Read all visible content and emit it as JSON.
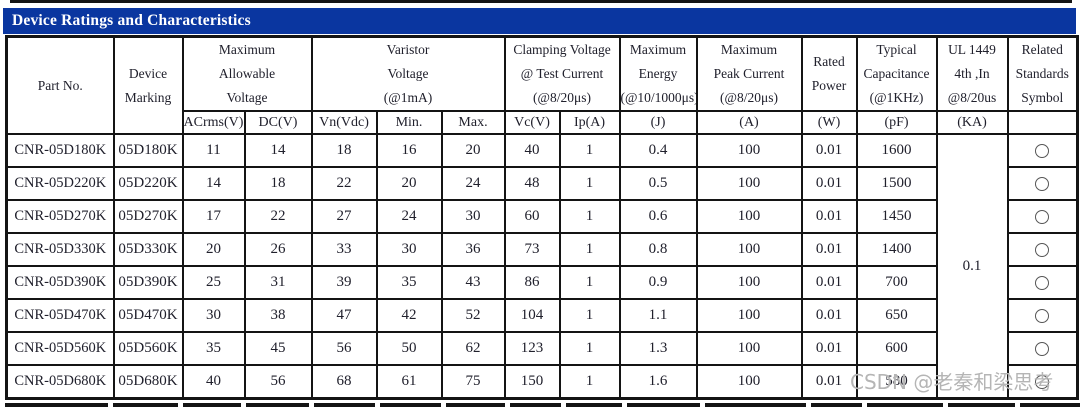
{
  "colors": {
    "title_bg": "#0a36a0",
    "border": "#141414",
    "watermark": "#b5b5b5"
  },
  "title_bar": {
    "title": "Device Ratings and Characteristics"
  },
  "watermark": {
    "text": "CSDN @老秦和梁思考"
  },
  "table": {
    "group_headers": {
      "part_no": "Part No.",
      "device_marking": "Device\nMarking",
      "max_allowable_voltage": "Maximum\nAllowable\nVoltage",
      "varistor_voltage": "Varistor\nVoltage\n(@1mA)",
      "clamping_voltage": "Clamping Voltage\n@ Test Current\n(@8/20μs)",
      "maximum_energy": "Maximum\nEnergy\n(@10/1000μs)",
      "maximum_peak_current": "Maximum\nPeak Current\n(@8/20μs)",
      "rated_power": "Rated\nPower",
      "typical_capacitance": "Typical\nCapacitance\n(@1KHz)",
      "ul_1449": "UL 1449\n4th ,In\n@8/20us",
      "related_standards": "Related\nStandards\nSymbol"
    },
    "sub_headers": {
      "acrms": "ACrms(V)",
      "dc": "DC(V)",
      "vn": "Vn(Vdc)",
      "min": "Min.",
      "max": "Max.",
      "vc": "Vc(V)",
      "ip": "Ip(A)",
      "j": "(J)",
      "a": "(A)",
      "w": "(W)",
      "pf": "(pF)",
      "ka": "(KA)",
      "related": ""
    },
    "ul_1449_value": "0.1",
    "related_symbol_icon": "circle-outline-icon",
    "rows": [
      {
        "part": "CNR-05D180K",
        "marking": "05D180K",
        "acrms": "11",
        "dc": "14",
        "vn": "18",
        "min": "16",
        "max": "20",
        "vc": "40",
        "ip": "1",
        "j": "0.4",
        "a": "100",
        "w": "0.01",
        "pf": "1600"
      },
      {
        "part": "CNR-05D220K",
        "marking": "05D220K",
        "acrms": "14",
        "dc": "18",
        "vn": "22",
        "min": "20",
        "max": "24",
        "vc": "48",
        "ip": "1",
        "j": "0.5",
        "a": "100",
        "w": "0.01",
        "pf": "1500"
      },
      {
        "part": "CNR-05D270K",
        "marking": "05D270K",
        "acrms": "17",
        "dc": "22",
        "vn": "27",
        "min": "24",
        "max": "30",
        "vc": "60",
        "ip": "1",
        "j": "0.6",
        "a": "100",
        "w": "0.01",
        "pf": "1450"
      },
      {
        "part": "CNR-05D330K",
        "marking": "05D330K",
        "acrms": "20",
        "dc": "26",
        "vn": "33",
        "min": "30",
        "max": "36",
        "vc": "73",
        "ip": "1",
        "j": "0.8",
        "a": "100",
        "w": "0.01",
        "pf": "1400"
      },
      {
        "part": "CNR-05D390K",
        "marking": "05D390K",
        "acrms": "25",
        "dc": "31",
        "vn": "39",
        "min": "35",
        "max": "43",
        "vc": "86",
        "ip": "1",
        "j": "0.9",
        "a": "100",
        "w": "0.01",
        "pf": "700"
      },
      {
        "part": "CNR-05D470K",
        "marking": "05D470K",
        "acrms": "30",
        "dc": "38",
        "vn": "47",
        "min": "42",
        "max": "52",
        "vc": "104",
        "ip": "1",
        "j": "1.1",
        "a": "100",
        "w": "0.01",
        "pf": "650"
      },
      {
        "part": "CNR-05D560K",
        "marking": "05D560K",
        "acrms": "35",
        "dc": "45",
        "vn": "56",
        "min": "50",
        "max": "62",
        "vc": "123",
        "ip": "1",
        "j": "1.3",
        "a": "100",
        "w": "0.01",
        "pf": "600"
      },
      {
        "part": "CNR-05D680K",
        "marking": "05D680K",
        "acrms": "40",
        "dc": "56",
        "vn": "68",
        "min": "61",
        "max": "75",
        "vc": "150",
        "ip": "1",
        "j": "1.6",
        "a": "100",
        "w": "0.01",
        "pf": "580"
      }
    ]
  }
}
